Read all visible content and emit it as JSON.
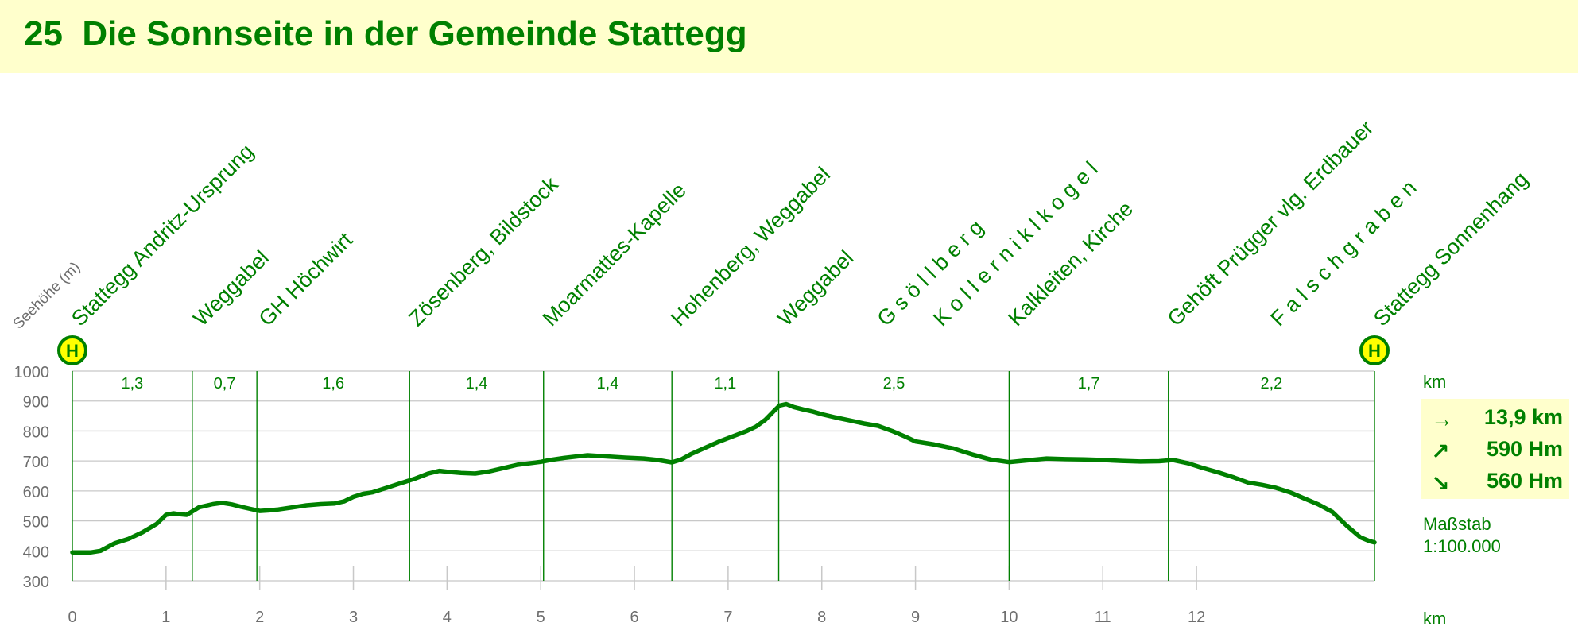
{
  "header": {
    "route_number": "25",
    "title": "Die Sonnseite in der Gemeinde Stattegg"
  },
  "colors": {
    "primary_green": "#008000",
    "header_bg": "#ffffcc",
    "grid": "#c8c8c8",
    "axis_text": "#6e6e6e"
  },
  "chart_data": {
    "type": "line",
    "ylabel": "Seehöhe (m)",
    "xlabel": "km",
    "ylim": [
      300,
      1000
    ],
    "yticks": [
      300,
      400,
      500,
      600,
      700,
      800,
      900,
      1000
    ],
    "xlim": [
      0,
      13.9
    ],
    "xticks": [
      0,
      1,
      2,
      3,
      4,
      5,
      6,
      7,
      8,
      9,
      10,
      11,
      12
    ],
    "grid": true,
    "waypoints": [
      {
        "km": 0.0,
        "name": "Stattegg Andritz-Ursprung",
        "bus_stop": true
      },
      {
        "km": 1.3,
        "name": "Weggabel"
      },
      {
        "km": 2.0,
        "name": "GH Höchwirt"
      },
      {
        "km": 3.6,
        "name": "Zösenberg, Bildstock"
      },
      {
        "km": 5.03,
        "name": "Moarmattes-Kapelle"
      },
      {
        "km": 6.4,
        "name": "Hohenberg, Weggabel"
      },
      {
        "km": 7.54,
        "name": "Weggabel"
      },
      {
        "km": 8.6,
        "name": "G s ö l l b e r g"
      },
      {
        "km": 9.2,
        "name": "K o l l e r n i k l k o g e l"
      },
      {
        "km": 10.0,
        "name": "Kalkleiten, Kirche"
      },
      {
        "km": 11.7,
        "name": "Gehöft Prügger vlg. Erdbauer"
      },
      {
        "km": 12.8,
        "name": "F a l s c h g r a b e n"
      },
      {
        "km": 13.9,
        "name": "Stattegg Sonnenhang",
        "bus_stop": true
      }
    ],
    "bus_stop_symbol": "H",
    "segment_boundaries": [
      0,
      1.28,
      1.97,
      3.6,
      5.03,
      6.4,
      7.54,
      10.0,
      11.7,
      13.9
    ],
    "segments": [
      "1,3",
      "0,7",
      "1,6",
      "1,4",
      "1,4",
      "1,1",
      "2,5",
      "1,7",
      "2,2"
    ],
    "series": [
      {
        "points": [
          [
            0.0,
            395
          ],
          [
            0.2,
            395
          ],
          [
            0.3,
            400
          ],
          [
            0.45,
            425
          ],
          [
            0.6,
            440
          ],
          [
            0.75,
            462
          ],
          [
            0.9,
            490
          ],
          [
            1.0,
            520
          ],
          [
            1.08,
            525
          ],
          [
            1.15,
            522
          ],
          [
            1.22,
            520
          ],
          [
            1.35,
            545
          ],
          [
            1.5,
            556
          ],
          [
            1.6,
            560
          ],
          [
            1.7,
            555
          ],
          [
            1.8,
            547
          ],
          [
            1.9,
            540
          ],
          [
            2.0,
            533
          ],
          [
            2.1,
            535
          ],
          [
            2.2,
            538
          ],
          [
            2.35,
            545
          ],
          [
            2.5,
            552
          ],
          [
            2.65,
            556
          ],
          [
            2.8,
            558
          ],
          [
            2.9,
            565
          ],
          [
            3.0,
            580
          ],
          [
            3.1,
            590
          ],
          [
            3.2,
            595
          ],
          [
            3.35,
            610
          ],
          [
            3.5,
            625
          ],
          [
            3.65,
            640
          ],
          [
            3.8,
            658
          ],
          [
            3.92,
            667
          ],
          [
            4.0,
            664
          ],
          [
            4.15,
            660
          ],
          [
            4.3,
            658
          ],
          [
            4.45,
            665
          ],
          [
            4.6,
            676
          ],
          [
            4.75,
            687
          ],
          [
            4.9,
            693
          ],
          [
            5.0,
            697
          ],
          [
            5.1,
            703
          ],
          [
            5.25,
            710
          ],
          [
            5.5,
            719
          ],
          [
            5.7,
            715
          ],
          [
            5.9,
            711
          ],
          [
            6.1,
            708
          ],
          [
            6.25,
            703
          ],
          [
            6.4,
            695
          ],
          [
            6.5,
            705
          ],
          [
            6.6,
            722
          ],
          [
            6.75,
            743
          ],
          [
            6.9,
            764
          ],
          [
            7.05,
            782
          ],
          [
            7.2,
            800
          ],
          [
            7.3,
            815
          ],
          [
            7.4,
            838
          ],
          [
            7.5,
            870
          ],
          [
            7.55,
            885
          ],
          [
            7.62,
            890
          ],
          [
            7.7,
            880
          ],
          [
            7.8,
            872
          ],
          [
            7.9,
            865
          ],
          [
            8.0,
            856
          ],
          [
            8.15,
            845
          ],
          [
            8.3,
            835
          ],
          [
            8.45,
            825
          ],
          [
            8.6,
            817
          ],
          [
            8.75,
            800
          ],
          [
            8.9,
            780
          ],
          [
            9.0,
            765
          ],
          [
            9.2,
            755
          ],
          [
            9.4,
            742
          ],
          [
            9.6,
            722
          ],
          [
            9.8,
            705
          ],
          [
            10.0,
            696
          ],
          [
            10.2,
            702
          ],
          [
            10.4,
            708
          ],
          [
            10.6,
            706
          ],
          [
            10.8,
            705
          ],
          [
            11.0,
            703
          ],
          [
            11.2,
            700
          ],
          [
            11.4,
            698
          ],
          [
            11.6,
            699
          ],
          [
            11.75,
            703
          ],
          [
            11.9,
            693
          ],
          [
            12.05,
            678
          ],
          [
            12.25,
            660
          ],
          [
            12.4,
            645
          ],
          [
            12.55,
            628
          ],
          [
            12.7,
            620
          ],
          [
            12.85,
            610
          ],
          [
            13.0,
            595
          ],
          [
            13.15,
            575
          ],
          [
            13.3,
            555
          ],
          [
            13.45,
            530
          ],
          [
            13.6,
            485
          ],
          [
            13.75,
            445
          ],
          [
            13.85,
            432
          ],
          [
            13.9,
            428
          ]
        ]
      }
    ]
  },
  "summary": {
    "km_label": "km",
    "distance": "13,9 km",
    "ascent": "590 Hm",
    "descent": "560 Hm",
    "distance_icon": "→",
    "ascent_icon": "↗",
    "descent_icon": "↘",
    "scale_label": "Maßstab",
    "scale_value": "1:100.000",
    "x_unit": "km"
  }
}
